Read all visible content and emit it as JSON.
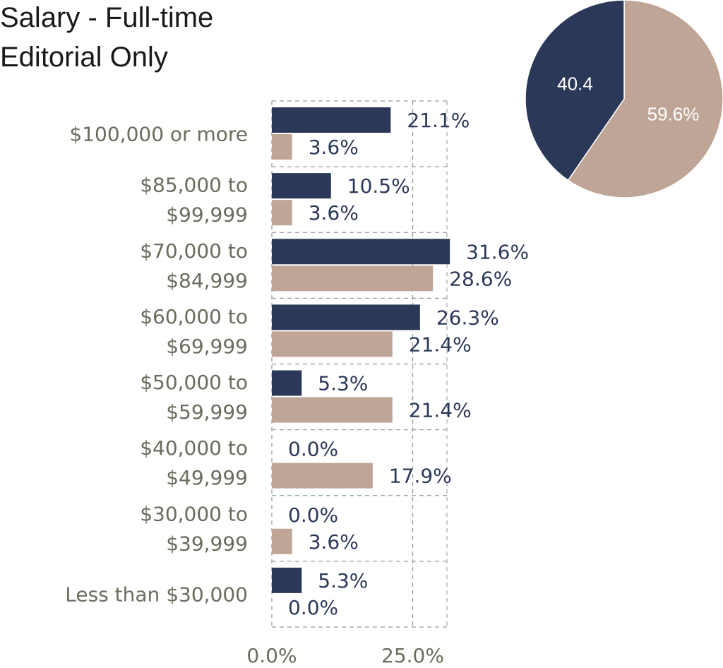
{
  "title": {
    "line1": "Salary - Full-time",
    "line2": "Editorial Only"
  },
  "colors": {
    "series_a": "#2b3858",
    "series_b": "#bfa595",
    "category_text": "#6b6b5e",
    "value_text": "#2b3858",
    "title_text": "#1a1a1a",
    "grid": "#9a9a9a"
  },
  "chart_data": [
    {
      "type": "bar",
      "orientation": "horizontal",
      "title": "Salary - Full-time Editorial Only",
      "categories": [
        [
          "$100,000 or more"
        ],
        [
          "$85,000 to",
          "$99,999"
        ],
        [
          "$70,000 to",
          "$84,999"
        ],
        [
          "$60,000 to",
          "$69,999"
        ],
        [
          "$50,000 to",
          "$59,999"
        ],
        [
          "$40,000 to",
          "$49,999"
        ],
        [
          "$30,000 to",
          "$39,999"
        ],
        [
          "Less than $30,000"
        ]
      ],
      "series": [
        {
          "values": [
            21.1,
            10.5,
            31.6,
            26.3,
            5.3,
            0.0,
            0.0,
            5.3
          ],
          "labels": [
            "21.1%",
            "10.5%",
            "31.6%",
            "26.3%",
            "5.3%",
            "0.0%",
            "0.0%",
            "5.3%"
          ],
          "color": "#2b3858"
        },
        {
          "values": [
            3.6,
            3.6,
            28.6,
            21.4,
            21.4,
            17.9,
            3.6,
            0.0
          ],
          "labels": [
            "3.6%",
            "3.6%",
            "28.6%",
            "21.4%",
            "21.4%",
            "17.9%",
            "3.6%",
            "0.0%"
          ],
          "color": "#bfa595"
        }
      ],
      "xlim": [
        0,
        32
      ],
      "xticks": [
        0,
        25
      ],
      "xtick_labels": [
        "0.0%",
        "25.0%"
      ],
      "grid": true,
      "grid_style": "dashed"
    },
    {
      "type": "pie",
      "slices": [
        {
          "value": 40.4,
          "label": "40.4",
          "color": "#2b3858"
        },
        {
          "value": 59.6,
          "label": "59.6%",
          "color": "#bfa595"
        }
      ]
    }
  ]
}
